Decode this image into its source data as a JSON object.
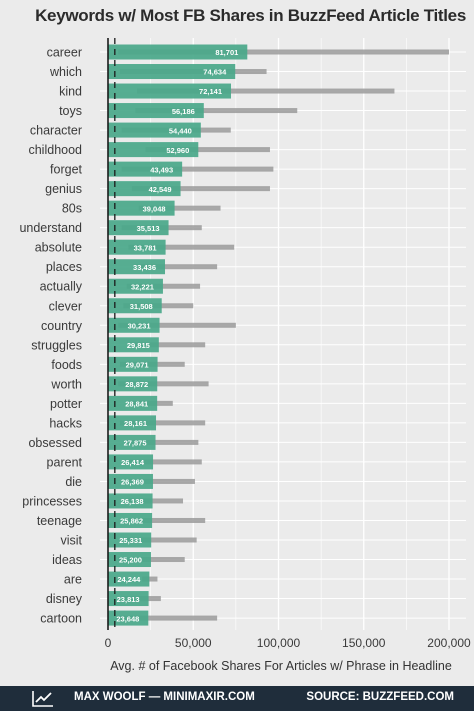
{
  "chart_data": {
    "type": "bar",
    "title": "Keywords w/ Most FB Shares in BuzzFeed Article Titles",
    "xlabel": "Avg. # of Facebook Shares For Articles w/ Phrase in Headline",
    "xlim": [
      0,
      205000
    ],
    "xticks": [
      0,
      50000,
      100000,
      150000,
      200000
    ],
    "xtick_labels": [
      "0",
      "50,000",
      "100,000",
      "150,000",
      "200,000"
    ],
    "grid": true,
    "reference_line_value": 4000,
    "categories": [
      "career",
      "which",
      "kind",
      "toys",
      "character",
      "childhood",
      "forget",
      "genius",
      "80s",
      "understand",
      "absolute",
      "places",
      "actually",
      "clever",
      "country",
      "struggles",
      "foods",
      "worth",
      "potter",
      "hacks",
      "obsessed",
      "parent",
      "die",
      "princesses",
      "teenage",
      "visit",
      "ideas",
      "are",
      "disney",
      "cartoon"
    ],
    "values": [
      81701,
      74634,
      72141,
      56186,
      54440,
      52960,
      43493,
      42549,
      39048,
      35513,
      33781,
      33436,
      32221,
      31508,
      30231,
      29815,
      29071,
      28872,
      28841,
      28161,
      27875,
      26414,
      26369,
      26138,
      25862,
      25331,
      25200,
      24244,
      23813,
      23648
    ],
    "value_labels": [
      "81,701",
      "74,634",
      "72,141",
      "56,186",
      "54,440",
      "52,960",
      "43,493",
      "42,549",
      "39,048",
      "35,513",
      "33,781",
      "33,436",
      "32,221",
      "31,508",
      "30,231",
      "29,815",
      "29,071",
      "28,872",
      "28,841",
      "28,161",
      "27,875",
      "26,414",
      "26,369",
      "26,138",
      "25,862",
      "25,331",
      "25,200",
      "24,244",
      "23,813",
      "23,648"
    ],
    "interval_low": [
      6000,
      7000,
      17000,
      16000,
      8000,
      22000,
      8000,
      14000,
      18000,
      8000,
      12000,
      15000,
      11000,
      9000,
      6000,
      13000,
      7000,
      6000,
      12000,
      7000,
      11000,
      8000,
      9000,
      10000,
      11000,
      9000,
      6000,
      20000,
      8000,
      5000
    ],
    "interval_high": [
      200000,
      93000,
      168000,
      111000,
      72000,
      95000,
      97000,
      95000,
      66000,
      55000,
      74000,
      64000,
      54000,
      50000,
      75000,
      57000,
      45000,
      59000,
      38000,
      57000,
      53000,
      55000,
      51000,
      44000,
      57000,
      52000,
      45000,
      29000,
      31000,
      64000
    ],
    "colors": {
      "bar": "#4aa88a",
      "interval": "#9a9a9a",
      "background": "#ebebeb",
      "grid": "#ffffff"
    }
  },
  "footer": {
    "left_text": "MAX WOOLF — MINIMAXIR.COM",
    "right_text": "SOURCE: BUZZFEED.COM",
    "icon": "trend-line-icon",
    "background": "#1f2d3b"
  }
}
